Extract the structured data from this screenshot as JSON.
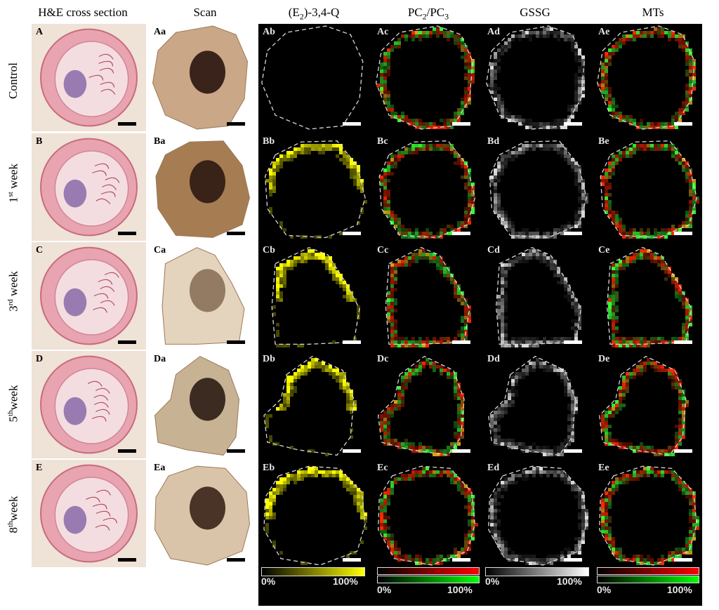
{
  "columns": [
    {
      "key": "he",
      "title": "H&E cross section"
    },
    {
      "key": "scan",
      "title": "Scan"
    },
    {
      "key": "e2q",
      "title_main": "(E",
      "title_sub": "2",
      "title_rest": ")-3,4-Q"
    },
    {
      "key": "pc",
      "title_pre": "PC",
      "title_sub1": "2",
      "title_mid": "/PC",
      "title_sub2": "3"
    },
    {
      "key": "gssg",
      "title": "GSSG"
    },
    {
      "key": "mts",
      "title": "MTs"
    }
  ],
  "rows": [
    {
      "key": "A",
      "label": "Control",
      "sup": "",
      "labels": [
        "A",
        "Aa",
        "Ab",
        "Ac",
        "Ad",
        "Ae"
      ]
    },
    {
      "key": "B",
      "label_num": "1",
      "sup": "st",
      "label_rest": " week",
      "labels": [
        "B",
        "Ba",
        "Bb",
        "Bc",
        "Bd",
        "Be"
      ]
    },
    {
      "key": "C",
      "label_num": "3",
      "sup": "rd",
      "label_rest": " week",
      "labels": [
        "C",
        "Ca",
        "Cb",
        "Cc",
        "Cd",
        "Ce"
      ]
    },
    {
      "key": "D",
      "label_num": "5",
      "sup": "th",
      "label_rest": "week",
      "labels": [
        "D",
        "Da",
        "Db",
        "Dc",
        "Dd",
        "De"
      ]
    },
    {
      "key": "E",
      "label_num": "8",
      "sup": "th",
      "label_rest": "week",
      "labels": [
        "E",
        "Ea",
        "Eb",
        "Ec",
        "Ed",
        "Ee"
      ]
    }
  ],
  "colorbars": [
    {
      "key": "e2q",
      "min": "0%",
      "max": "100%",
      "colors": [
        "#000000",
        "#ffff00"
      ]
    },
    {
      "key": "pc",
      "min": "0%",
      "max": "100%",
      "colors_top": [
        "#000000",
        "#ff0000"
      ],
      "colors_bottom": [
        "#000000",
        "#00ff00"
      ]
    },
    {
      "key": "gssg",
      "min": "0%",
      "max": "100%",
      "colors": [
        "#000000",
        "#ffffff"
      ]
    },
    {
      "key": "mts",
      "min": "0%",
      "max": "100%",
      "colors_top": [
        "#000000",
        "#ff0000"
      ],
      "colors_bottom": [
        "#000000",
        "#00ff00"
      ]
    }
  ],
  "palette": {
    "he_tissue": "#e8a4b0",
    "he_gland": "#8a6aa8",
    "signal_yellow": "#ffff00",
    "signal_red": "#ff2a00",
    "signal_green": "#33ff33",
    "signal_white": "#ffffff"
  }
}
